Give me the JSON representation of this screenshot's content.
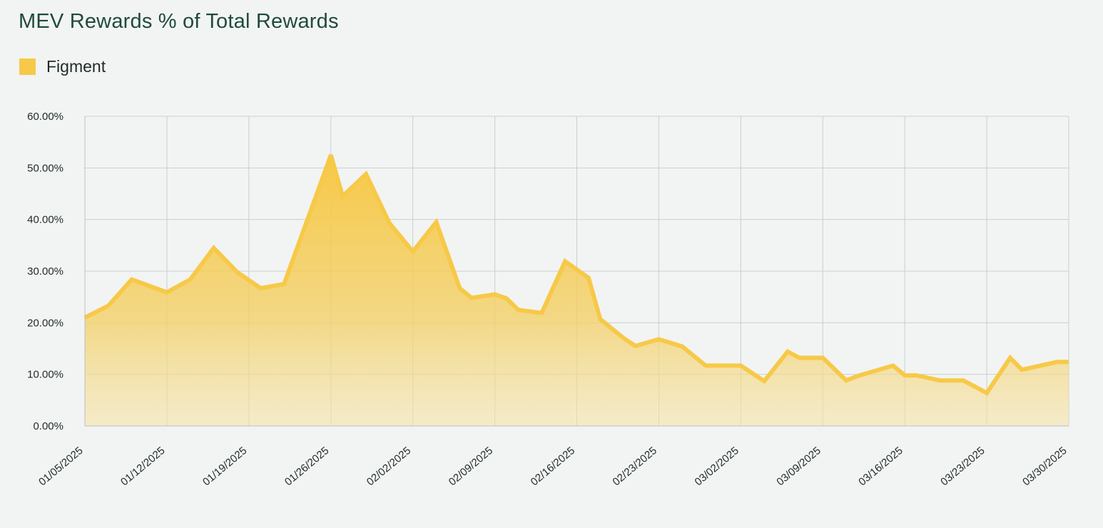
{
  "title": "MEV Rewards % of Total Rewards",
  "legend": {
    "label": "Figment",
    "color": "#f7c948"
  },
  "chart_data": {
    "type": "area",
    "title": "MEV Rewards % of Total Rewards",
    "xlabel": "",
    "ylabel": "",
    "ylim": [
      0,
      60
    ],
    "y_ticks": [
      0,
      10,
      20,
      30,
      40,
      50,
      60
    ],
    "y_tick_labels": [
      "0.00%",
      "10.00%",
      "20.00%",
      "30.00%",
      "40.00%",
      "50.00%",
      "60.00%"
    ],
    "x_range": [
      "2025-01-05",
      "2025-03-30"
    ],
    "x_ticks": [
      "2025-01-05",
      "2025-01-12",
      "2025-01-19",
      "2025-01-26",
      "2025-02-02",
      "2025-02-09",
      "2025-02-16",
      "2025-02-23",
      "2025-03-02",
      "2025-03-09",
      "2025-03-16",
      "2025-03-23",
      "2025-03-30"
    ],
    "x_tick_labels": [
      "01/05/2025",
      "01/12/2025",
      "01/19/2025",
      "01/26/2025",
      "02/02/2025",
      "02/09/2025",
      "02/16/2025",
      "02/23/2025",
      "03/02/2025",
      "03/09/2025",
      "03/16/2025",
      "03/23/2025",
      "03/30/2025"
    ],
    "grid": true,
    "legend_position": "top-left",
    "series": [
      {
        "name": "Figment",
        "color": "#f7c948",
        "x": [
          "2025-01-05",
          "2025-01-07",
          "2025-01-09",
          "2025-01-12",
          "2025-01-14",
          "2025-01-16",
          "2025-01-18",
          "2025-01-20",
          "2025-01-22",
          "2025-01-26",
          "2025-01-27",
          "2025-01-29",
          "2025-01-31",
          "2025-02-02",
          "2025-02-04",
          "2025-02-06",
          "2025-02-07",
          "2025-02-09",
          "2025-02-10",
          "2025-02-11",
          "2025-02-13",
          "2025-02-15",
          "2025-02-17",
          "2025-02-18",
          "2025-02-20",
          "2025-02-21",
          "2025-02-23",
          "2025-02-25",
          "2025-02-27",
          "2025-03-02",
          "2025-03-04",
          "2025-03-06",
          "2025-03-07",
          "2025-03-09",
          "2025-03-11",
          "2025-03-12",
          "2025-03-15",
          "2025-03-16",
          "2025-03-17",
          "2025-03-19",
          "2025-03-21",
          "2025-03-23",
          "2025-03-25",
          "2025-03-26",
          "2025-03-29",
          "2025-03-30"
        ],
        "values": [
          21.0,
          23.3,
          28.4,
          25.9,
          28.4,
          34.5,
          29.8,
          26.7,
          27.5,
          52.5,
          44.5,
          48.8,
          39.3,
          33.8,
          39.5,
          26.7,
          24.8,
          25.5,
          24.7,
          22.5,
          21.9,
          31.9,
          28.7,
          20.7,
          17.0,
          15.5,
          16.8,
          15.4,
          11.7,
          11.7,
          8.7,
          14.4,
          13.2,
          13.2,
          8.8,
          9.7,
          11.7,
          9.8,
          9.8,
          8.8,
          8.8,
          6.4,
          13.2,
          10.9,
          12.4,
          12.4
        ]
      }
    ]
  }
}
